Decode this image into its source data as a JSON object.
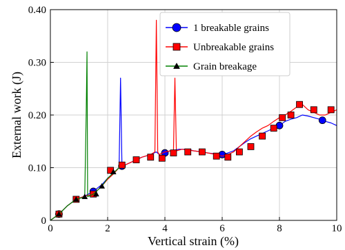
{
  "chart_data": {
    "type": "line",
    "xlabel": "Vertical strain (%)",
    "ylabel": "External work (J)",
    "xlim": [
      0,
      10
    ],
    "ylim": [
      0,
      0.4
    ],
    "xticks": [
      "0",
      "2",
      "4",
      "6",
      "8",
      "10"
    ],
    "yticks": [
      "0",
      "0.10",
      "0.20",
      "0.30",
      "0.40"
    ],
    "grid": true,
    "legend_position": "top-center",
    "series": [
      {
        "name": "1 breakable grains",
        "color": "#0000ff",
        "marker": "circle",
        "x": [
          0,
          0.3,
          0.6,
          0.9,
          1.2,
          1.5,
          1.8,
          2.0,
          2.2,
          2.4,
          2.45,
          2.5,
          2.6,
          2.8,
          3.0,
          3.2,
          3.5,
          3.7,
          3.8,
          4.0,
          4.2,
          4.5,
          4.8,
          5.0,
          5.3,
          5.5,
          5.8,
          6.0,
          6.2,
          6.4,
          6.6,
          6.8,
          7.0,
          7.2,
          7.4,
          7.6,
          7.8,
          8.0,
          8.2,
          8.4,
          8.6,
          8.8,
          9.0,
          9.2,
          9.4,
          9.6,
          9.8,
          10.0
        ],
        "y": [
          0,
          0.012,
          0.028,
          0.04,
          0.046,
          0.055,
          0.068,
          0.08,
          0.09,
          0.1,
          0.27,
          0.1,
          0.105,
          0.11,
          0.115,
          0.12,
          0.125,
          0.13,
          0.125,
          0.13,
          0.132,
          0.135,
          0.135,
          0.132,
          0.13,
          0.128,
          0.126,
          0.125,
          0.128,
          0.132,
          0.14,
          0.148,
          0.155,
          0.16,
          0.165,
          0.17,
          0.175,
          0.18,
          0.188,
          0.192,
          0.195,
          0.2,
          0.198,
          0.195,
          0.192,
          0.188,
          0.185,
          0.18
        ],
        "marker_x": [
          0.3,
          1.5,
          2.5,
          4.0,
          6.0,
          8.0,
          9.5
        ],
        "marker_y": [
          0.012,
          0.055,
          0.103,
          0.128,
          0.125,
          0.18,
          0.19
        ]
      },
      {
        "name": "Unbreakable grains",
        "color": "#ff0000",
        "marker": "square",
        "x": [
          0,
          0.3,
          0.6,
          0.9,
          1.2,
          1.5,
          1.8,
          2.0,
          2.2,
          2.4,
          2.6,
          2.8,
          3.0,
          3.2,
          3.5,
          3.65,
          3.7,
          3.75,
          3.8,
          4.0,
          4.2,
          4.3,
          4.35,
          4.4,
          4.6,
          5.0,
          5.3,
          5.5,
          5.8,
          6.0,
          6.2,
          6.4,
          6.6,
          6.8,
          7.0,
          7.2,
          7.4,
          7.6,
          7.8,
          8.0,
          8.2,
          8.4,
          8.6,
          8.7,
          8.8,
          9.0,
          9.2,
          9.4,
          9.6,
          9.8,
          10.0
        ],
        "y": [
          0,
          0.012,
          0.028,
          0.04,
          0.046,
          0.05,
          0.065,
          0.078,
          0.088,
          0.1,
          0.105,
          0.11,
          0.115,
          0.12,
          0.125,
          0.13,
          0.38,
          0.13,
          0.125,
          0.13,
          0.132,
          0.132,
          0.27,
          0.132,
          0.135,
          0.132,
          0.13,
          0.128,
          0.125,
          0.122,
          0.125,
          0.13,
          0.14,
          0.15,
          0.16,
          0.168,
          0.175,
          0.18,
          0.188,
          0.195,
          0.2,
          0.207,
          0.215,
          0.225,
          0.22,
          0.21,
          0.205,
          0.2,
          0.2,
          0.205,
          0.21
        ],
        "marker_x": [
          0.3,
          0.9,
          1.5,
          2.1,
          2.5,
          3.0,
          3.5,
          3.9,
          4.3,
          4.8,
          5.3,
          5.8,
          6.2,
          6.6,
          7.0,
          7.4,
          7.8,
          8.1,
          8.4,
          8.7,
          9.2,
          9.8
        ],
        "marker_y": [
          0.012,
          0.04,
          0.05,
          0.095,
          0.105,
          0.115,
          0.12,
          0.118,
          0.128,
          0.13,
          0.13,
          0.122,
          0.12,
          0.13,
          0.14,
          0.16,
          0.175,
          0.195,
          0.2,
          0.22,
          0.21,
          0.21
        ]
      },
      {
        "name": "Grain breakage",
        "color": "#008000",
        "marker": "triangle",
        "x": [
          0,
          0.3,
          0.6,
          0.9,
          1.1,
          1.2,
          1.25,
          1.28,
          1.3,
          1.35,
          1.5,
          1.8,
          2.0,
          2.2,
          2.4
        ],
        "y": [
          0,
          0.012,
          0.028,
          0.04,
          0.043,
          0.045,
          0.2,
          0.32,
          0.045,
          0.046,
          0.05,
          0.065,
          0.08,
          0.09,
          0.1
        ],
        "marker_x": [
          0.3,
          0.9,
          1.2,
          1.6,
          1.8,
          2.2
        ],
        "marker_y": [
          0.012,
          0.04,
          0.045,
          0.05,
          0.065,
          0.092
        ]
      }
    ]
  }
}
